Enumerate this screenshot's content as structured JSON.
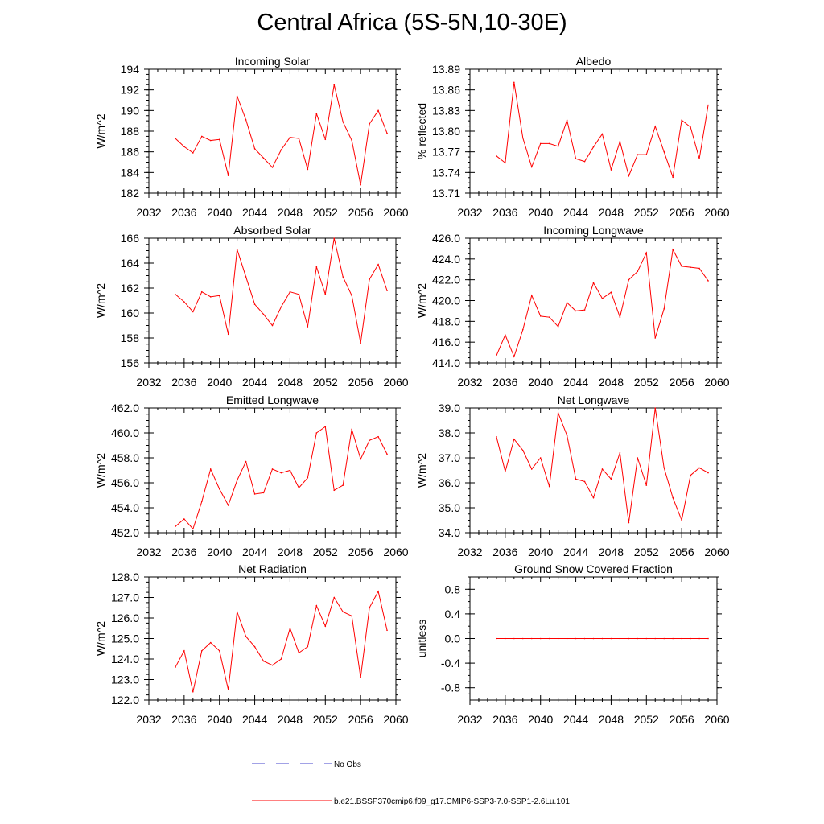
{
  "figure": {
    "title": "Central Africa (5S-5N,10-30E)",
    "line_color": "#ff0000",
    "legend": {
      "obs_label": "No Obs",
      "obs_color": "#4444cc",
      "model_label": "b.e21.BSSP370cmip6.f09_g17.CMIP6-SSP3-7.0-SSP1-2.6Lu.101",
      "model_color": "#ff0000"
    }
  },
  "chart_data": [
    {
      "type": "line",
      "title": "Incoming Solar",
      "ylabel": "W/m^2",
      "xlim": [
        2032,
        2060
      ],
      "ylim": [
        182,
        194
      ],
      "xticks": [
        "2032",
        "2036",
        "2040",
        "2044",
        "2048",
        "2052",
        "2056",
        "2060"
      ],
      "yticks": [
        "182",
        "184",
        "186",
        "188",
        "190",
        "192",
        "194"
      ],
      "x": [
        2035,
        2036,
        2037,
        2038,
        2039,
        2040,
        2041,
        2042,
        2043,
        2044,
        2045,
        2046,
        2047,
        2048,
        2049,
        2050,
        2051,
        2052,
        2053,
        2054,
        2055,
        2056,
        2057,
        2058,
        2059
      ],
      "series": [
        {
          "values": [
            187.3,
            186.5,
            185.9,
            187.5,
            187.1,
            187.2,
            183.7,
            191.4,
            189.1,
            186.3,
            185.4,
            184.5,
            186.2,
            187.4,
            187.3,
            184.3,
            189.7,
            187.2,
            192.5,
            188.9,
            187.1,
            182.8,
            188.7,
            190.0,
            187.8
          ]
        }
      ]
    },
    {
      "type": "line",
      "title": "Albedo",
      "ylabel": "% reflected",
      "xlim": [
        2032,
        2060
      ],
      "ylim": [
        13.71,
        13.89
      ],
      "xticks": [
        "2032",
        "2036",
        "2040",
        "2044",
        "2048",
        "2052",
        "2056",
        "2060"
      ],
      "yticks": [
        "13.71",
        "13.74",
        "13.77",
        "13.80",
        "13.83",
        "13.86",
        "13.89"
      ],
      "x": [
        2035,
        2036,
        2037,
        2038,
        2039,
        2040,
        2041,
        2042,
        2043,
        2044,
        2045,
        2046,
        2047,
        2048,
        2049,
        2050,
        2051,
        2052,
        2053,
        2054,
        2055,
        2056,
        2057,
        2058,
        2059
      ],
      "series": [
        {
          "values": [
            13.764,
            13.754,
            13.871,
            13.79,
            13.748,
            13.782,
            13.782,
            13.778,
            13.816,
            13.76,
            13.756,
            13.777,
            13.796,
            13.744,
            13.785,
            13.735,
            13.766,
            13.766,
            13.807,
            13.77,
            13.733,
            13.816,
            13.806,
            13.76,
            13.838
          ]
        }
      ]
    },
    {
      "type": "line",
      "title": "Absorbed Solar",
      "ylabel": "W/m^2",
      "xlim": [
        2032,
        2060
      ],
      "ylim": [
        156,
        166
      ],
      "xticks": [
        "2032",
        "2036",
        "2040",
        "2044",
        "2048",
        "2052",
        "2056",
        "2060"
      ],
      "yticks": [
        "156",
        "158",
        "160",
        "162",
        "164",
        "166"
      ],
      "x": [
        2035,
        2036,
        2037,
        2038,
        2039,
        2040,
        2041,
        2042,
        2043,
        2044,
        2045,
        2046,
        2047,
        2048,
        2049,
        2050,
        2051,
        2052,
        2053,
        2054,
        2055,
        2056,
        2057,
        2058,
        2059
      ],
      "series": [
        {
          "values": [
            161.5,
            160.9,
            160.1,
            161.7,
            161.3,
            161.4,
            158.3,
            165.1,
            162.9,
            160.7,
            159.9,
            159.0,
            160.5,
            161.7,
            161.5,
            158.9,
            163.7,
            161.5,
            166.0,
            162.9,
            161.4,
            157.6,
            162.7,
            163.9,
            161.8
          ]
        }
      ]
    },
    {
      "type": "line",
      "title": "Incoming Longwave",
      "ylabel": "W/m^2",
      "xlim": [
        2032,
        2060
      ],
      "ylim": [
        414,
        426
      ],
      "xticks": [
        "2032",
        "2036",
        "2040",
        "2044",
        "2048",
        "2052",
        "2056",
        "2060"
      ],
      "yticks": [
        "414.0",
        "416.0",
        "418.0",
        "420.0",
        "422.0",
        "424.0",
        "426.0"
      ],
      "x": [
        2035,
        2036,
        2037,
        2038,
        2039,
        2040,
        2041,
        2042,
        2043,
        2044,
        2045,
        2046,
        2047,
        2048,
        2049,
        2050,
        2051,
        2052,
        2053,
        2054,
        2055,
        2056,
        2057,
        2058,
        2059
      ],
      "series": [
        {
          "values": [
            414.7,
            416.7,
            414.6,
            417.2,
            420.5,
            418.5,
            418.4,
            417.5,
            419.8,
            419.0,
            419.1,
            421.7,
            420.2,
            420.8,
            418.4,
            422.0,
            422.8,
            424.6,
            416.4,
            419.2,
            424.9,
            423.3,
            423.2,
            423.1,
            421.9
          ]
        }
      ]
    },
    {
      "type": "line",
      "title": "Emitted Longwave",
      "ylabel": "W/m^2",
      "xlim": [
        2032,
        2060
      ],
      "ylim": [
        452,
        462
      ],
      "xticks": [
        "2032",
        "2036",
        "2040",
        "2044",
        "2048",
        "2052",
        "2056",
        "2060"
      ],
      "yticks": [
        "452.0",
        "454.0",
        "456.0",
        "458.0",
        "460.0",
        "462.0"
      ],
      "x": [
        2035,
        2036,
        2037,
        2038,
        2039,
        2040,
        2041,
        2042,
        2043,
        2044,
        2045,
        2046,
        2047,
        2048,
        2049,
        2050,
        2051,
        2052,
        2053,
        2054,
        2055,
        2056,
        2057,
        2058,
        2059
      ],
      "series": [
        {
          "values": [
            452.5,
            453.1,
            452.3,
            454.5,
            457.1,
            455.5,
            454.2,
            456.2,
            457.7,
            455.1,
            455.2,
            457.1,
            456.8,
            457.0,
            455.6,
            456.4,
            460.0,
            460.5,
            455.4,
            455.8,
            460.3,
            457.9,
            459.4,
            459.7,
            458.3
          ]
        }
      ]
    },
    {
      "type": "line",
      "title": "Net Longwave",
      "ylabel": "W/m^2",
      "xlim": [
        2032,
        2060
      ],
      "ylim": [
        34,
        39
      ],
      "xticks": [
        "2032",
        "2036",
        "2040",
        "2044",
        "2048",
        "2052",
        "2056",
        "2060"
      ],
      "yticks": [
        "34.0",
        "35.0",
        "36.0",
        "37.0",
        "38.0",
        "39.0"
      ],
      "x": [
        2035,
        2036,
        2037,
        2038,
        2039,
        2040,
        2041,
        2042,
        2043,
        2044,
        2045,
        2046,
        2047,
        2048,
        2049,
        2050,
        2051,
        2052,
        2053,
        2054,
        2055,
        2056,
        2057,
        2058,
        2059
      ],
      "series": [
        {
          "values": [
            37.85,
            36.45,
            37.75,
            37.3,
            36.55,
            37.0,
            35.85,
            38.8,
            37.9,
            36.15,
            36.05,
            35.4,
            36.55,
            36.15,
            37.2,
            34.4,
            37.0,
            35.9,
            39.0,
            36.6,
            35.4,
            34.5,
            36.3,
            36.6,
            36.4
          ]
        }
      ]
    },
    {
      "type": "line",
      "title": "Net Radiation",
      "ylabel": "W/m^2",
      "xlim": [
        2032,
        2060
      ],
      "ylim": [
        122,
        128
      ],
      "xticks": [
        "2032",
        "2036",
        "2040",
        "2044",
        "2048",
        "2052",
        "2056",
        "2060"
      ],
      "yticks": [
        "122.0",
        "123.0",
        "124.0",
        "125.0",
        "126.0",
        "127.0",
        "128.0"
      ],
      "x": [
        2035,
        2036,
        2037,
        2038,
        2039,
        2040,
        2041,
        2042,
        2043,
        2044,
        2045,
        2046,
        2047,
        2048,
        2049,
        2050,
        2051,
        2052,
        2053,
        2054,
        2055,
        2056,
        2057,
        2058,
        2059
      ],
      "series": [
        {
          "values": [
            123.6,
            124.4,
            122.4,
            124.4,
            124.8,
            124.4,
            122.5,
            126.3,
            125.1,
            124.6,
            123.9,
            123.7,
            124.0,
            125.5,
            124.3,
            124.6,
            126.6,
            125.6,
            127.0,
            126.3,
            126.1,
            123.1,
            126.5,
            127.3,
            125.4
          ]
        }
      ]
    },
    {
      "type": "line",
      "title": "Ground Snow Covered Fraction",
      "ylabel": "unitless",
      "xlim": [
        2032,
        2060
      ],
      "ylim": [
        -1.0,
        1.0
      ],
      "xticks": [
        "2032",
        "2036",
        "2040",
        "2044",
        "2048",
        "2052",
        "2056",
        "2060"
      ],
      "yticks": [
        "-0.8",
        "-0.4",
        "0.0",
        "0.4",
        "0.8"
      ],
      "ytickvalues": [
        -0.8,
        -0.4,
        0.0,
        0.4,
        0.8
      ],
      "x": [
        2035,
        2036,
        2037,
        2038,
        2039,
        2040,
        2041,
        2042,
        2043,
        2044,
        2045,
        2046,
        2047,
        2048,
        2049,
        2050,
        2051,
        2052,
        2053,
        2054,
        2055,
        2056,
        2057,
        2058,
        2059
      ],
      "series": [
        {
          "values": [
            0,
            0,
            0,
            0,
            0,
            0,
            0,
            0,
            0,
            0,
            0,
            0,
            0,
            0,
            0,
            0,
            0,
            0,
            0,
            0,
            0,
            0,
            0,
            0,
            0
          ]
        }
      ]
    }
  ]
}
